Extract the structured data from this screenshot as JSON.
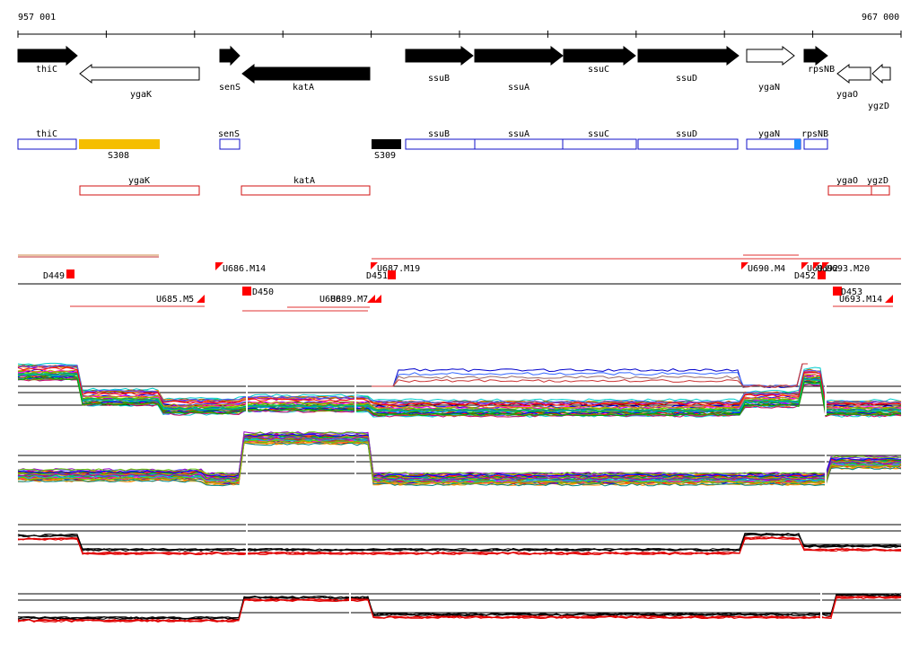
{
  "ruler": {
    "start_label": "957 001",
    "end_label": "967 000"
  },
  "genes": [
    {
      "name": "thiC",
      "strand": "+",
      "fill": "black"
    },
    {
      "name": "ygaK",
      "strand": "-",
      "fill": "white"
    },
    {
      "name": "senS",
      "strand": "+",
      "fill": "black"
    },
    {
      "name": "katA",
      "strand": "-",
      "fill": "black"
    },
    {
      "name": "ssuB",
      "strand": "+",
      "fill": "black"
    },
    {
      "name": "ssuA",
      "strand": "+",
      "fill": "black"
    },
    {
      "name": "ssuC",
      "strand": "+",
      "fill": "black"
    },
    {
      "name": "ssuD",
      "strand": "+",
      "fill": "black"
    },
    {
      "name": "ygaN",
      "strand": "+",
      "fill": "white"
    },
    {
      "name": "rpsNB",
      "strand": "+",
      "fill": "black"
    },
    {
      "name": "ygaO",
      "strand": "-",
      "fill": "white"
    },
    {
      "name": "ygzD",
      "strand": "-",
      "fill": "white"
    }
  ],
  "forward_track": {
    "items": [
      {
        "label": "thiC"
      },
      {
        "label": "S308",
        "color": "#f5be00"
      },
      {
        "label": "senS"
      },
      {
        "label": "S309",
        "color": "#000000"
      },
      {
        "label": "ssuB"
      },
      {
        "label": "ssuA"
      },
      {
        "label": "ssuC"
      },
      {
        "label": "ssuD"
      },
      {
        "label": "ygaN"
      },
      {
        "label": "rpsNB"
      }
    ]
  },
  "reverse_track": {
    "items": [
      {
        "label": "ygaK"
      },
      {
        "label": "katA"
      },
      {
        "label": "ygaO"
      },
      {
        "label": "ygzD"
      }
    ]
  },
  "segments": {
    "labels": [
      "D449",
      "U686.M14",
      "U687.M19",
      "D451",
      "U690.M4",
      "D452",
      "U691",
      "U692",
      "U693.M20",
      "U685.M5",
      "D450",
      "U688",
      "U689.M7",
      "D453",
      "U693.M14"
    ]
  },
  "colors": {
    "forward_box": "#1010c8",
    "reverse_box": "#d01010",
    "segment": "#ff0000",
    "accent_blue": "#1e90ff"
  }
}
